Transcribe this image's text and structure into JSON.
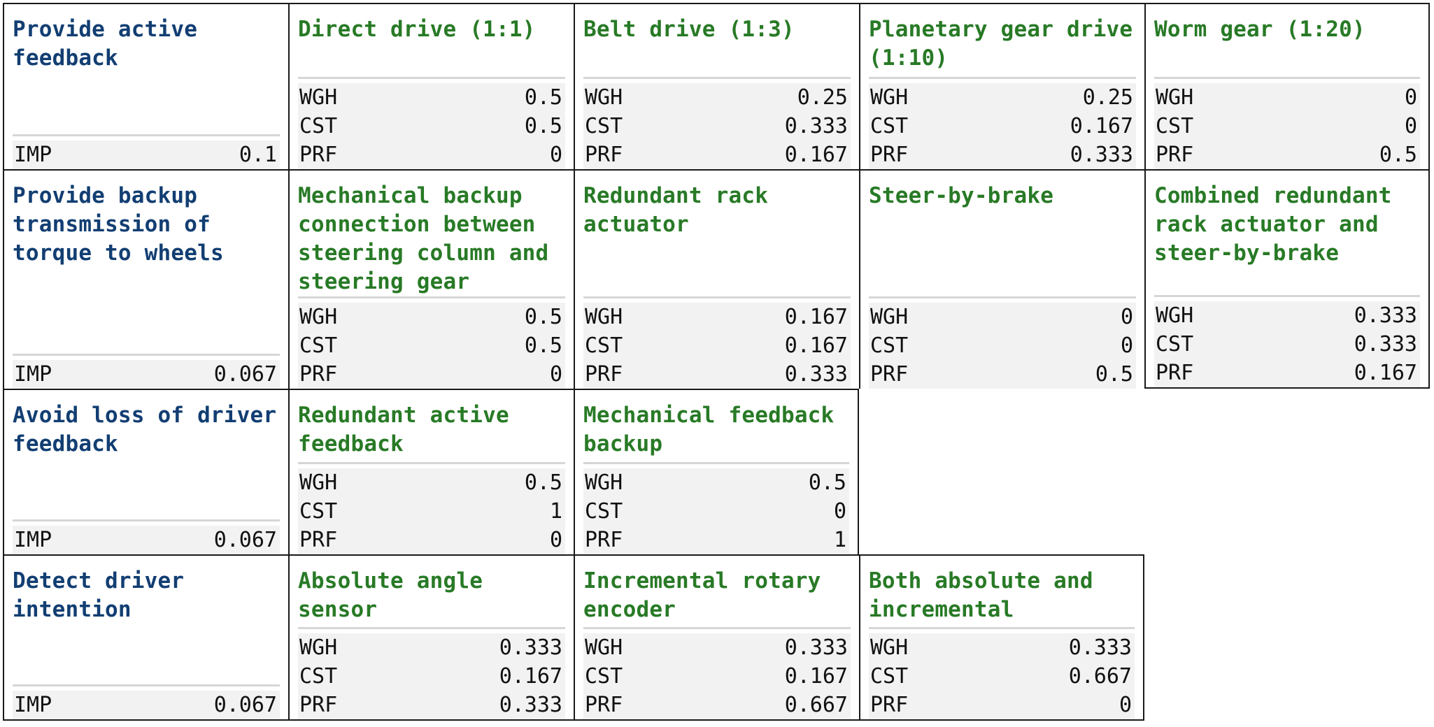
{
  "rows": [
    {
      "function": {
        "title": "Provide active feedback",
        "imp_label": "IMP",
        "imp_value": "0.1"
      },
      "options": [
        {
          "title": "Direct drive (1:1)",
          "wgh": "0.5",
          "cst": "0.5",
          "prf": "0"
        },
        {
          "title": "Belt drive (1:3)",
          "wgh": "0.25",
          "cst": "0.333",
          "prf": "0.167"
        },
        {
          "title": "Planetary gear drive (1:10)",
          "wgh": "0.25",
          "cst": "0.167",
          "prf": "0.333"
        },
        {
          "title": "Worm gear (1:20)",
          "wgh": "0",
          "cst": "0",
          "prf": "0.5"
        }
      ]
    },
    {
      "function": {
        "title": "Provide backup transmission of torque to wheels",
        "imp_label": "IMP",
        "imp_value": "0.067"
      },
      "options": [
        {
          "title": "Mechanical backup connection between steering column and steering gear",
          "wgh": "0.5",
          "cst": "0.5",
          "prf": "0"
        },
        {
          "title": "Redundant rack actuator",
          "wgh": "0.167",
          "cst": "0.167",
          "prf": "0.333"
        },
        {
          "title": "Steer-by-brake",
          "wgh": "0",
          "cst": "0",
          "prf": "0.5"
        },
        {
          "title": "Combined redundant rack actuator and steer-by-brake",
          "wgh": "0.333",
          "cst": "0.333",
          "prf": "0.167"
        }
      ]
    },
    {
      "function": {
        "title": "Avoid loss of driver feedback",
        "imp_label": "IMP",
        "imp_value": "0.067"
      },
      "options": [
        {
          "title": "Redundant active feedback",
          "wgh": "0.5",
          "cst": "1",
          "prf": "0"
        },
        {
          "title": "Mechanical feedback backup",
          "wgh": "0.5",
          "cst": "0",
          "prf": "1"
        }
      ]
    },
    {
      "function": {
        "title": "Detect driver intention",
        "imp_label": "IMP",
        "imp_value": "0.067"
      },
      "options": [
        {
          "title": "Absolute angle sensor",
          "wgh": "0.333",
          "cst": "0.167",
          "prf": "0.333"
        },
        {
          "title": "Incremental rotary encoder",
          "wgh": "0.333",
          "cst": "0.167",
          "prf": "0.667"
        },
        {
          "title": "Both absolute and incremental",
          "wgh": "0.333",
          "cst": "0.667",
          "prf": "0"
        }
      ]
    }
  ],
  "labels": {
    "wgh": "WGH",
    "cst": "CST",
    "prf": "PRF"
  },
  "colors": {
    "function_title": "#123e72",
    "option_title": "#287a26",
    "border": "#1a1a1a",
    "metric_bg": "#f2f2f2"
  }
}
